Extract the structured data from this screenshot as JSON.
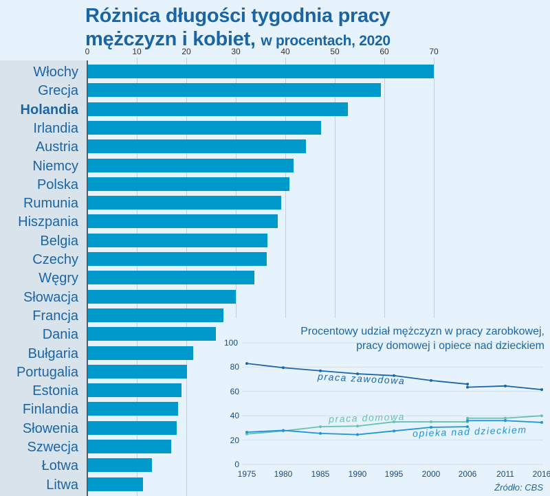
{
  "title": {
    "main_line1": "Różnica długości tygodnia pracy",
    "main_line2": "mężczyzn i kobiet,",
    "subtitle": "w procentach, 2020"
  },
  "source": "Źródło: CBS",
  "colors": {
    "bar": "#0099cc",
    "title": "#1a65a5",
    "background": "#e6f3fc",
    "label_panel": "#d9e3ec",
    "line_zawodowa": "#1a65a5",
    "line_domowa": "#6cbfae",
    "line_opieka": "#1b96d6"
  },
  "chart_data": [
    {
      "type": "bar",
      "orientation": "horizontal",
      "title": "Różnica długości tygodnia pracy mężczyzn i kobiet, w procentach, 2020",
      "xlabel": "",
      "ylabel": "",
      "xlim": [
        0,
        70
      ],
      "xticks": [
        "0",
        "10",
        "20",
        "30",
        "40",
        "50",
        "60",
        "70"
      ],
      "grid": true,
      "highlight": "Holandia",
      "categories": [
        "Włochy",
        "Grecja",
        "Holandia",
        "Irlandia",
        "Austria",
        "Niemcy",
        "Polska",
        "Rumunia",
        "Hiszpania",
        "Belgia",
        "Czechy",
        "Węgry",
        "Słowacja",
        "Francja",
        "Dania",
        "Bułgaria",
        "Portugalia",
        "Estonia",
        "Finlandia",
        "Słowenia",
        "Szwecja",
        "Łotwa",
        "Litwa"
      ],
      "values": [
        70.0,
        59.3,
        52.6,
        47.2,
        44.2,
        41.6,
        40.9,
        39.2,
        38.5,
        36.4,
        36.3,
        33.8,
        30.0,
        27.5,
        26.0,
        21.4,
        20.1,
        19.0,
        18.4,
        18.0,
        16.9,
        13.1,
        11.2
      ]
    },
    {
      "type": "line",
      "title": "Procentowy udział mężczyzn w pracy zarobkowej, pracy domowej i opiece nad dzieckiem",
      "xlabel": "",
      "ylabel": "",
      "ylim": [
        0,
        100
      ],
      "yticks": [
        "0",
        "20",
        "40",
        "60",
        "80",
        "100"
      ],
      "grid": true,
      "x": [
        "1975",
        "1980",
        "1985",
        "1990",
        "1995",
        "2000",
        "2006",
        "2011",
        "2016"
      ],
      "series": [
        {
          "name": "praca zawodowa",
          "values": [
            83,
            79.5,
            77,
            74.5,
            73,
            69,
            66,
            64.5,
            61.5
          ],
          "break_2006": [
            66,
            63.5
          ]
        },
        {
          "name": "praca domowa",
          "values": [
            25,
            27.5,
            31,
            31.5,
            35,
            35,
            35,
            38,
            40
          ],
          "break_2006": [
            35,
            38
          ]
        },
        {
          "name": "opieka nad dzieckiem",
          "values": [
            26.5,
            28,
            25.5,
            24.5,
            27.5,
            30.5,
            31,
            36,
            34.5
          ],
          "break_2006": [
            31,
            36
          ]
        }
      ],
      "legend": "inline labels"
    }
  ],
  "inset": {
    "title_line1": "Procentowy udział mężczyzn w pracy zarobkowej,",
    "title_line2": "pracy domowej i opiece nad dzieckiem",
    "labels": {
      "zawodowa": "praca zawodowa",
      "domowa": "praca domowa",
      "opieka": "opieka nad dzieckiem"
    }
  }
}
